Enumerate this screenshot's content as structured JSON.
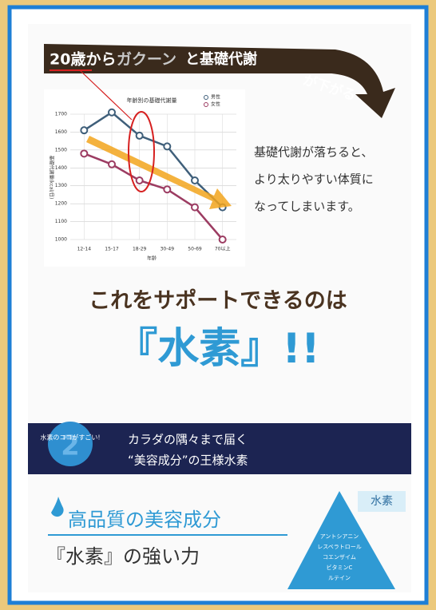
{
  "banner": {
    "parts": [
      "20歳から",
      "ガクーン",
      "と基礎代謝",
      "が下がる"
    ]
  },
  "chart_data": {
    "type": "line",
    "title": "年齢別の基礎代謝量",
    "y_label": "基礎代謝量(kcal/日)",
    "x_label": "年齢",
    "categories": [
      "12-14",
      "15-17",
      "18-29",
      "30-49",
      "50-69",
      "70以上"
    ],
    "series": [
      {
        "name": "男性",
        "color": "#3f5f7a",
        "values": [
          1610,
          1710,
          1580,
          1520,
          1330,
          1180
        ]
      },
      {
        "name": "女性",
        "color": "#9c3c62",
        "values": [
          1480,
          1420,
          1330,
          1280,
          1180,
          1000
        ]
      }
    ],
    "ylim": [
      1000,
      1700
    ],
    "yticks": [
      1000,
      1100,
      1200,
      1300,
      1400,
      1500,
      1600,
      1700
    ],
    "grid": true
  },
  "side_text": [
    "基礎代謝が落ちると、",
    "より太りやすい体質に",
    "なってしまいます。"
  ],
  "support": "これをサポートできるのは",
  "hydrogen": "『水素』!!",
  "point": {
    "badge": "水素のココがすごい!",
    "number": "2",
    "lines": [
      "カラダの隅々まで届く",
      "“美容成分”の王様水素"
    ]
  },
  "quality": {
    "title": "高品質の美容成分",
    "subtitle": "『水素』の強い力"
  },
  "pyramid": {
    "top": "水素",
    "items": [
      "アントシアニン",
      "レスベラトロール",
      "コエンザイム",
      "ビタミンC",
      "ルテイン"
    ]
  }
}
